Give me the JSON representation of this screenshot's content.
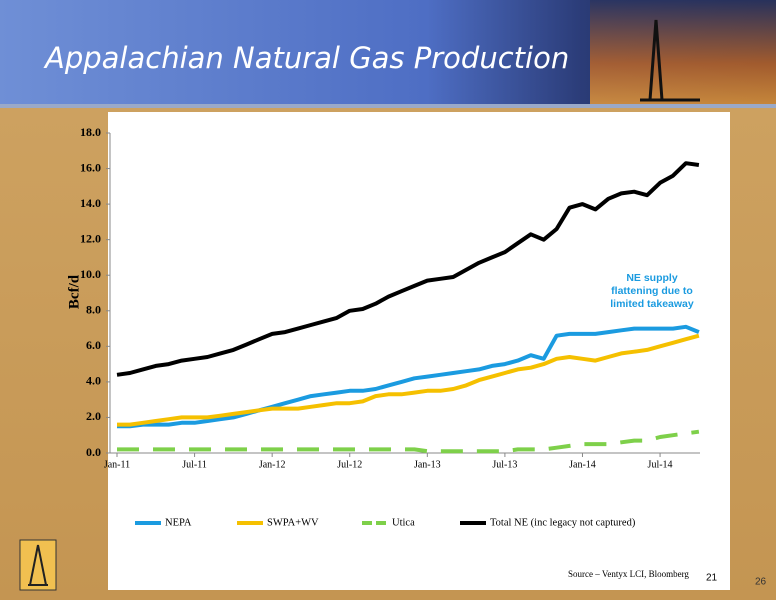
{
  "chart_data": {
    "type": "line",
    "title": "Appalachian Natural Gas Production",
    "y_label": "Bcf/d",
    "annotation": [
      "NE supply",
      "flattening due to",
      "limited takeaway"
    ],
    "source": "Source – Ventyx LCI, Bloomberg",
    "chart_page": "21",
    "slide_page": "26",
    "legend": "bottom",
    "categories": [
      "Jan-11",
      null,
      null,
      null,
      null,
      null,
      "Jul-11",
      null,
      null,
      null,
      null,
      null,
      "Jan-12",
      null,
      null,
      null,
      null,
      null,
      "Jul-12",
      null,
      null,
      null,
      null,
      null,
      "Jan-13",
      null,
      null,
      null,
      null,
      null,
      "Jul-13",
      null,
      null,
      null,
      null,
      null,
      "Jan-14",
      null,
      null,
      null,
      null,
      null,
      "Jul-14",
      null,
      null,
      null
    ],
    "ylim": [
      0,
      18
    ],
    "yticks": [
      {
        "value": 0,
        "label": "0.0"
      },
      {
        "value": 2,
        "label": "2.0"
      },
      {
        "value": 4,
        "label": "4.0"
      },
      {
        "value": 6,
        "label": "6.0"
      },
      {
        "value": 8,
        "label": "8.0"
      },
      {
        "value": 10,
        "label": "10.0"
      },
      {
        "value": 12,
        "label": "12.0"
      },
      {
        "value": 14,
        "label": "14.0"
      },
      {
        "value": 16,
        "label": "16.0"
      },
      {
        "value": 18,
        "label": "18.0"
      }
    ],
    "series": [
      {
        "name": "NEPA",
        "color": "#1b9be0",
        "values": [
          1.5,
          1.5,
          1.6,
          1.6,
          1.6,
          1.7,
          1.7,
          1.8,
          1.9,
          2.0,
          2.2,
          2.4,
          2.6,
          2.8,
          3.0,
          3.2,
          3.3,
          3.4,
          3.5,
          3.5,
          3.6,
          3.8,
          4.0,
          4.2,
          4.3,
          4.4,
          4.5,
          4.6,
          4.7,
          4.9,
          5.0,
          5.2,
          5.5,
          5.3,
          6.6,
          6.7,
          6.7,
          6.7,
          6.8,
          6.9,
          7.0,
          7.0,
          7.0,
          7.0,
          7.1,
          6.8
        ]
      },
      {
        "name": "SWPA+WV",
        "color": "#f5c000",
        "values": [
          1.6,
          1.6,
          1.7,
          1.8,
          1.9,
          2.0,
          2.0,
          2.0,
          2.1,
          2.2,
          2.3,
          2.4,
          2.5,
          2.5,
          2.5,
          2.6,
          2.7,
          2.8,
          2.8,
          2.9,
          3.2,
          3.3,
          3.3,
          3.4,
          3.5,
          3.5,
          3.6,
          3.8,
          4.1,
          4.3,
          4.5,
          4.7,
          4.8,
          5.0,
          5.3,
          5.4,
          5.3,
          5.2,
          5.4,
          5.6,
          5.7,
          5.8,
          6.0,
          6.2,
          6.4,
          6.6
        ]
      },
      {
        "name": "Utica",
        "color": "#7ed04a",
        "dashed": true,
        "values": [
          0.2,
          0.2,
          0.2,
          0.2,
          0.2,
          0.2,
          0.2,
          0.2,
          0.2,
          0.2,
          0.2,
          0.2,
          0.2,
          0.2,
          0.2,
          0.2,
          0.2,
          0.2,
          0.2,
          0.2,
          0.2,
          0.2,
          0.2,
          0.2,
          0.1,
          0.1,
          0.1,
          0.1,
          0.1,
          0.1,
          0.1,
          0.2,
          0.2,
          0.2,
          0.3,
          0.4,
          0.5,
          0.5,
          0.5,
          0.6,
          0.7,
          0.7,
          0.9,
          1.0,
          1.1,
          1.2
        ]
      },
      {
        "name": "Total NE (inc legacy not captured)",
        "color": "#000000",
        "values": [
          4.4,
          4.5,
          4.7,
          4.9,
          5.0,
          5.2,
          5.3,
          5.4,
          5.6,
          5.8,
          6.1,
          6.4,
          6.7,
          6.8,
          7.0,
          7.2,
          7.4,
          7.6,
          8.0,
          8.1,
          8.4,
          8.8,
          9.1,
          9.4,
          9.7,
          9.8,
          9.9,
          10.3,
          10.7,
          11.0,
          11.3,
          11.8,
          12.3,
          12.0,
          12.6,
          13.8,
          14.0,
          13.7,
          14.3,
          14.6,
          14.7,
          14.5,
          15.2,
          15.6,
          16.3,
          16.2
        ]
      }
    ]
  }
}
